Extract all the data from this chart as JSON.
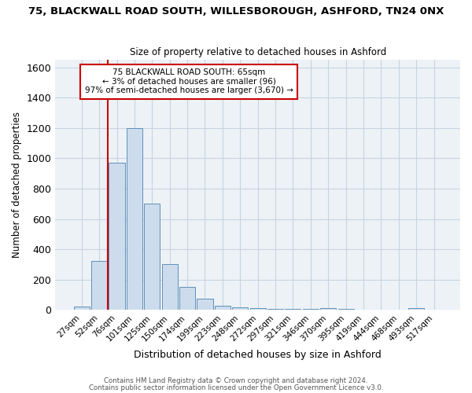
{
  "title_line1": "75, BLACKWALL ROAD SOUTH, WILLESBOROUGH, ASHFORD, TN24 0NX",
  "title_line2": "Size of property relative to detached houses in Ashford",
  "xlabel": "Distribution of detached houses by size in Ashford",
  "ylabel": "Number of detached properties",
  "bar_labels": [
    "27sqm",
    "52sqm",
    "76sqm",
    "101sqm",
    "125sqm",
    "150sqm",
    "174sqm",
    "199sqm",
    "223sqm",
    "248sqm",
    "272sqm",
    "297sqm",
    "321sqm",
    "346sqm",
    "370sqm",
    "395sqm",
    "419sqm",
    "444sqm",
    "468sqm",
    "493sqm",
    "517sqm"
  ],
  "bar_values": [
    25,
    325,
    970,
    1200,
    700,
    305,
    155,
    75,
    30,
    20,
    12,
    5,
    10,
    5,
    12,
    5,
    0,
    0,
    0,
    12,
    0
  ],
  "bar_color": "#ccdcec",
  "bar_edge_color": "#6090b8",
  "grid_color": "#c8d4e0",
  "background_color": "#edf2f7",
  "vline_color": "#cc0000",
  "annotation_text": "75 BLACKWALL ROAD SOUTH: 65sqm\n← 3% of detached houses are smaller (96)\n97% of semi-detached houses are larger (3,670) →",
  "annotation_box_color": "#ffffff",
  "annotation_box_edge_color": "#cc0000",
  "ylim": [
    0,
    1650
  ],
  "yticks": [
    0,
    200,
    400,
    600,
    800,
    1000,
    1200,
    1400,
    1600
  ],
  "footer_line1": "Contains HM Land Registry data © Crown copyright and database right 2024.",
  "footer_line2": "Contains public sector information licensed under the Open Government Licence v3.0."
}
